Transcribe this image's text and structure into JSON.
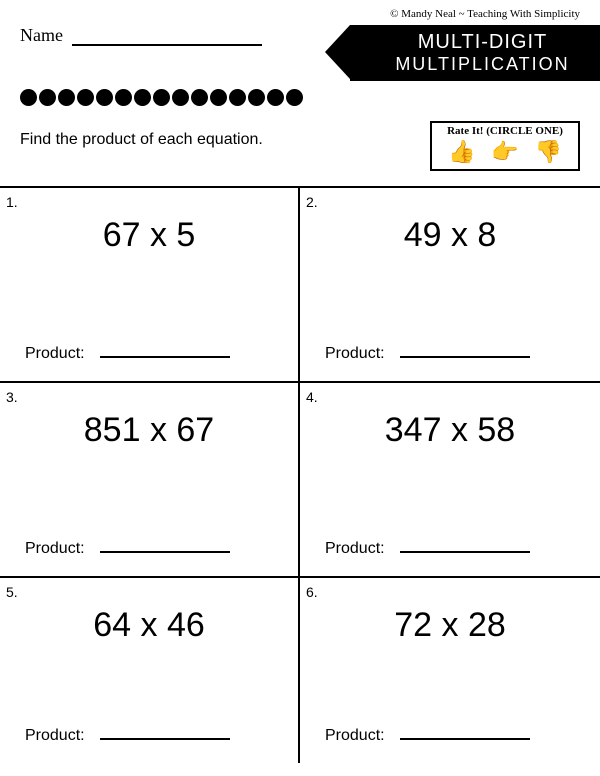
{
  "copyright": "© Mandy Neal ~ Teaching With Simplicity",
  "name_label": "Name",
  "title_line1": "MULTI-DIGIT",
  "title_line2": "MULTIPLICATION",
  "instruction": "Find the product of each equation.",
  "rate_label": "Rate It! (CIRCLE ONE)",
  "dot_count": 15,
  "product_label": "Product:",
  "problems": [
    {
      "num": "1.",
      "equation": "67 x 5"
    },
    {
      "num": "2.",
      "equation": "49 x 8"
    },
    {
      "num": "3.",
      "equation": "851 x 67"
    },
    {
      "num": "4.",
      "equation": "347 x 58"
    },
    {
      "num": "5.",
      "equation": "64 x 46"
    },
    {
      "num": "6.",
      "equation": "72 x 28"
    }
  ],
  "colors": {
    "background": "#ffffff",
    "text": "#000000",
    "banner_bg": "#000000",
    "banner_text": "#ffffff"
  },
  "fonts": {
    "handwritten": "Comic Sans MS",
    "title": "Impact",
    "body": "Trebuchet MS",
    "equation": "Arial",
    "equation_size": 34
  }
}
